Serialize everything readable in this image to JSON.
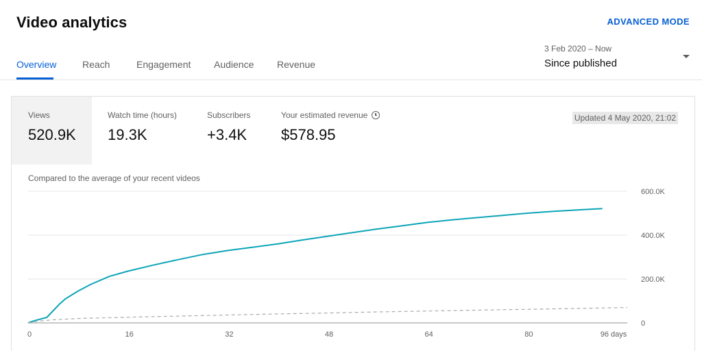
{
  "header": {
    "title": "Video analytics",
    "advanced_mode_label": "ADVANCED MODE"
  },
  "tabs": [
    {
      "label": "Overview",
      "active": true
    },
    {
      "label": "Reach",
      "active": false
    },
    {
      "label": "Engagement",
      "active": false
    },
    {
      "label": "Audience",
      "active": false
    },
    {
      "label": "Revenue",
      "active": false
    }
  ],
  "date_range": {
    "range": "3 Feb 2020 – Now",
    "selected": "Since published"
  },
  "metrics": [
    {
      "label": "Views",
      "value": "520.9K",
      "active": true
    },
    {
      "label": "Watch time (hours)",
      "value": "19.3K",
      "active": false
    },
    {
      "label": "Subscribers",
      "value": "+3.4K",
      "active": false
    },
    {
      "label": "Your estimated revenue",
      "value": "$578.95",
      "active": false,
      "icon": "clock-icon"
    }
  ],
  "updated_label": "Updated 4 May 2020, 21:02",
  "comparison_note": "Compared to the average of your recent videos",
  "colors": {
    "accent": "#065fd4",
    "views_line": "#0ba4b8",
    "average_line": "#aaaaaa"
  },
  "chart_data": {
    "type": "line",
    "x_ticks": [
      "0",
      "16",
      "32",
      "48",
      "64",
      "80",
      "96 days"
    ],
    "y_ticks": [
      "0",
      "200.0K",
      "400.0K",
      "600.0K"
    ],
    "xlim": [
      0,
      96
    ],
    "ylim": [
      0,
      600000
    ],
    "grid": true,
    "series": [
      {
        "style": "solid",
        "x": [
          0,
          1,
          3,
          5,
          6,
          8,
          10,
          13,
          16,
          20,
          24,
          28,
          32,
          36,
          40,
          44,
          48,
          52,
          56,
          60,
          64,
          68,
          72,
          76,
          80,
          84,
          88,
          92
        ],
        "y": [
          0,
          10000,
          25000,
          85000,
          110000,
          145000,
          175000,
          212000,
          236000,
          263000,
          288000,
          312000,
          330000,
          345000,
          360000,
          378000,
          395000,
          412000,
          428000,
          443000,
          458000,
          470000,
          480000,
          490000,
          500000,
          508000,
          515000,
          521000
        ]
      },
      {
        "style": "dashed",
        "x": [
          0,
          2,
          4,
          8,
          16,
          24,
          32,
          40,
          48,
          56,
          64,
          72,
          80,
          88,
          96
        ],
        "y": [
          0,
          9000,
          14000,
          20000,
          26000,
          31000,
          36000,
          41000,
          45000,
          50000,
          54000,
          58000,
          62000,
          66000,
          70000
        ]
      }
    ]
  }
}
